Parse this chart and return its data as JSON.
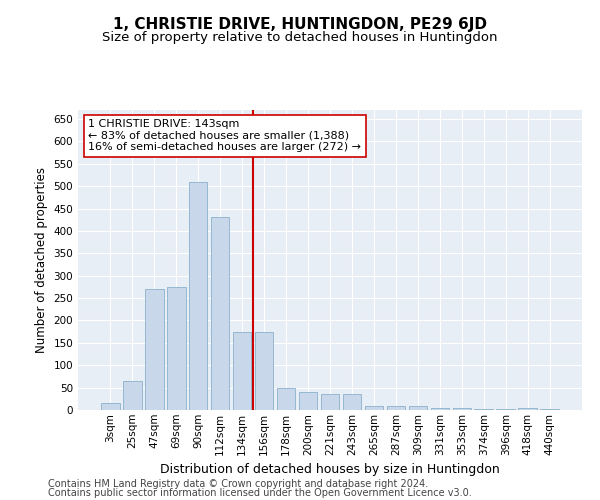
{
  "title": "1, CHRISTIE DRIVE, HUNTINGDON, PE29 6JD",
  "subtitle": "Size of property relative to detached houses in Huntingdon",
  "xlabel": "Distribution of detached houses by size in Huntingdon",
  "ylabel": "Number of detached properties",
  "bar_labels": [
    "3sqm",
    "25sqm",
    "47sqm",
    "69sqm",
    "90sqm",
    "112sqm",
    "134sqm",
    "156sqm",
    "178sqm",
    "200sqm",
    "221sqm",
    "243sqm",
    "265sqm",
    "287sqm",
    "309sqm",
    "331sqm",
    "353sqm",
    "374sqm",
    "396sqm",
    "418sqm",
    "440sqm"
  ],
  "bar_values": [
    15,
    65,
    270,
    275,
    510,
    430,
    175,
    175,
    50,
    40,
    35,
    35,
    10,
    10,
    8,
    5,
    5,
    2,
    2,
    5,
    2
  ],
  "bar_color": "#c8d8ea",
  "bar_edge_color": "#8ab0cc",
  "background_color": "#e8eef6",
  "grid_color": "#ffffff",
  "vline_color": "#cc0000",
  "annotation_text": "1 CHRISTIE DRIVE: 143sqm\n← 83% of detached houses are smaller (1,388)\n16% of semi-detached houses are larger (272) →",
  "annotation_box_color": "#ffffff",
  "annotation_box_edge": "#cc0000",
  "ylim": [
    0,
    670
  ],
  "yticks": [
    0,
    50,
    100,
    150,
    200,
    250,
    300,
    350,
    400,
    450,
    500,
    550,
    600,
    650
  ],
  "footer_line1": "Contains HM Land Registry data © Crown copyright and database right 2024.",
  "footer_line2": "Contains public sector information licensed under the Open Government Licence v3.0.",
  "title_fontsize": 11,
  "subtitle_fontsize": 9.5,
  "xlabel_fontsize": 9,
  "ylabel_fontsize": 8.5,
  "tick_fontsize": 7.5,
  "annotation_fontsize": 8,
  "footer_fontsize": 7
}
